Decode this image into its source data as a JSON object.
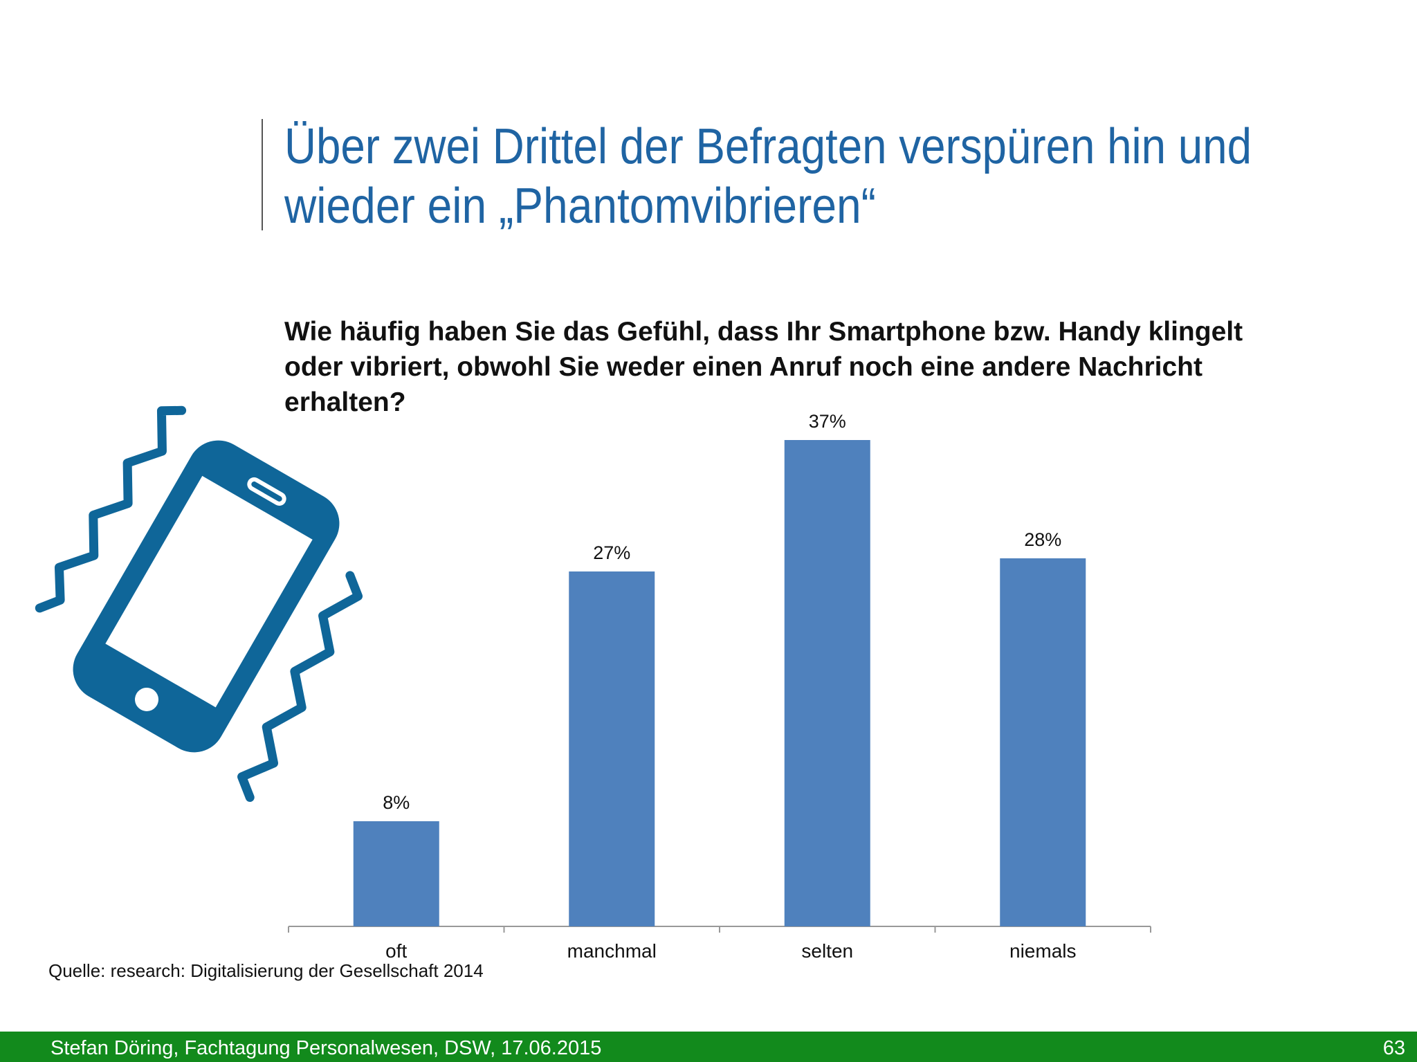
{
  "slide": {
    "title": [
      "Über zwei Drittel der Befragten verspüren hin und",
      "wieder ein „Phantomvibrieren“"
    ],
    "source": "Quelle: research: Digitalisierung der Gesellschaft 2014",
    "footer": "Stefan Döring, Fachtagung Personalwesen, DSW, 17.06.2015",
    "page_number": "63"
  },
  "chart_data": {
    "type": "bar",
    "title": [
      "Wie häufig haben Sie das Gefühl, dass Ihr Smartphone bzw. Handy klingelt",
      "oder vibriert, obwohl Sie weder einen Anruf noch eine andere Nachricht",
      "erhalten?"
    ],
    "categories": [
      "oft",
      "manchmal",
      "selten",
      "niemals"
    ],
    "values": [
      8,
      27,
      37,
      28
    ],
    "value_labels": [
      "8%",
      "27%",
      "37%",
      "28%"
    ],
    "color": "#4f81bd",
    "ylim": [
      0,
      40
    ]
  }
}
